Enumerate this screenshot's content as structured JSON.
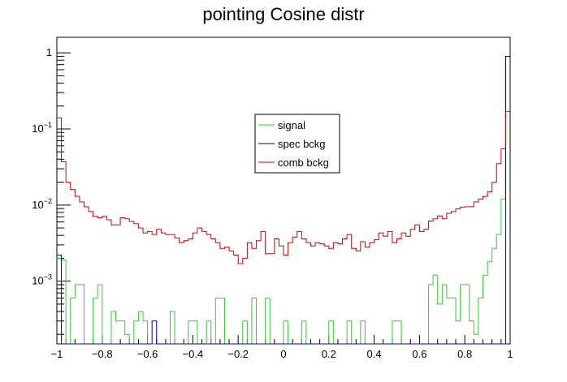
{
  "chart_data": {
    "type": "line",
    "title": "pointing Cosine distr",
    "xlabel": "",
    "ylabel": "",
    "xlim": [
      -1,
      1
    ],
    "ylim": [
      0.00015,
      1.6
    ],
    "log_y": true,
    "grid": false,
    "legend_position": "center-top",
    "x_ticks": [
      {
        "value": -1,
        "label": "−1"
      },
      {
        "value": -0.8,
        "label": "−0.8"
      },
      {
        "value": -0.6,
        "label": "−0.6"
      },
      {
        "value": -0.4,
        "label": "−0.4"
      },
      {
        "value": -0.2,
        "label": "−0.2"
      },
      {
        "value": 0,
        "label": "0"
      },
      {
        "value": 0.2,
        "label": "0.2"
      },
      {
        "value": 0.4,
        "label": "0.4"
      },
      {
        "value": 0.6,
        "label": "0.6"
      },
      {
        "value": 0.8,
        "label": "0.8"
      },
      {
        "value": 1,
        "label": "1"
      }
    ],
    "y_ticks": [
      {
        "value": 1,
        "base": "1",
        "exp": ""
      },
      {
        "value": 0.1,
        "base": "10",
        "exp": "−1"
      },
      {
        "value": 0.01,
        "base": "10",
        "exp": "−2"
      },
      {
        "value": 0.001,
        "base": "10",
        "exp": "−3"
      }
    ],
    "bins": {
      "min": -1,
      "max": 1,
      "count": 100
    },
    "series": [
      {
        "name": "signal",
        "color": "#33cc33",
        "values": [
          0.002,
          0.0019,
          0,
          0.0006,
          0.0009,
          0.0009,
          0,
          0,
          0.0006,
          0.0009,
          0,
          0,
          0.0004,
          0.0003,
          0.0003,
          0.0002,
          0,
          0.0003,
          0.0004,
          0.0003,
          0,
          0,
          0,
          0,
          0,
          0.0004,
          0,
          0,
          0,
          0.0003,
          0.0003,
          0,
          0,
          0.0003,
          0,
          0.0006,
          0.0006,
          0,
          0,
          0,
          0,
          0.0003,
          0,
          0.0006,
          0,
          0,
          0.0006,
          0,
          0,
          0,
          0.0003,
          0,
          0,
          0,
          0.0003,
          0,
          0,
          0,
          0,
          0,
          0.0003,
          0,
          0,
          0,
          0.0003,
          0,
          0,
          0.0003,
          0,
          0,
          0,
          0,
          0,
          0,
          0.0003,
          0.0003,
          0,
          0,
          0,
          0,
          0,
          0,
          0.0009,
          0.0012,
          0.0005,
          0.0009,
          0.0006,
          0.0006,
          0.0003,
          0.0009,
          0.0009,
          0.0003,
          0.0002,
          0.0006,
          0.0012,
          0.0018,
          0.0027,
          0.0041,
          0.012,
          0.9
        ]
      },
      {
        "name": "spec bckg",
        "color": "#000099",
        "values": [
          0.0022,
          0,
          0,
          0,
          0,
          0,
          0,
          0,
          0,
          0,
          0,
          0,
          0,
          0,
          0,
          0,
          0,
          0,
          0,
          0,
          0,
          0.0003,
          0,
          0,
          0,
          0,
          0,
          0,
          0,
          0,
          0,
          0,
          0,
          0,
          0,
          0,
          0,
          0,
          0,
          0,
          0,
          0,
          0,
          0,
          0,
          0,
          0,
          0,
          0,
          0,
          0,
          0,
          0,
          0,
          0,
          0,
          0,
          0,
          0,
          0,
          0,
          0,
          0,
          0,
          0,
          0,
          0,
          0,
          0,
          0,
          0,
          0,
          0,
          0,
          0,
          0,
          0,
          0,
          0,
          0,
          0,
          0,
          0,
          0,
          0,
          0,
          0,
          0,
          0,
          0,
          0,
          0,
          0,
          0,
          0,
          0,
          0,
          0,
          0,
          0.9
        ]
      },
      {
        "name": "comb bckg",
        "color": "#cc0000",
        "values": [
          0.14,
          0.037,
          0.02,
          0.016,
          0.013,
          0.011,
          0.0095,
          0.0082,
          0.0071,
          0.0068,
          0.0071,
          0.0064,
          0.0055,
          0.0055,
          0.0068,
          0.0066,
          0.0061,
          0.0057,
          0.005,
          0.0043,
          0.0045,
          0.0041,
          0.0048,
          0.0043,
          0.0041,
          0.0041,
          0.0037,
          0.0032,
          0.0034,
          0.0036,
          0.0043,
          0.005,
          0.0045,
          0.0041,
          0.0036,
          0.0032,
          0.0027,
          0.0028,
          0.0025,
          0.0022,
          0.0017,
          0.002,
          0.0032,
          0.0027,
          0.0034,
          0.0045,
          0.0023,
          0.0023,
          0.0036,
          0.0029,
          0.0022,
          0.0032,
          0.0038,
          0.0045,
          0.0036,
          0.0032,
          0.0029,
          0.0032,
          0.0031,
          0.0029,
          0.0027,
          0.0032,
          0.0031,
          0.0036,
          0.0041,
          0.0027,
          0.0025,
          0.0033,
          0.0028,
          0.0032,
          0.0035,
          0.0043,
          0.0039,
          0.0045,
          0.0032,
          0.0036,
          0.0043,
          0.0039,
          0.0048,
          0.0055,
          0.0045,
          0.0048,
          0.0062,
          0.0066,
          0.0072,
          0.0066,
          0.0078,
          0.0082,
          0.0089,
          0.0094,
          0.0095,
          0.0095,
          0.011,
          0.012,
          0.013,
          0.015,
          0.02,
          0.035,
          0.055,
          0.17
        ]
      }
    ]
  }
}
